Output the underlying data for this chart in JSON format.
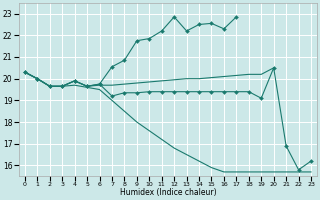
{
  "xlabel": "Humidex (Indice chaleur)",
  "bg_color": "#cce8e8",
  "grid_color": "#ffffff",
  "line_color": "#1a7a6e",
  "xlim": [
    -0.5,
    23.5
  ],
  "ylim": [
    15.5,
    23.5
  ],
  "yticks": [
    16,
    17,
    18,
    19,
    20,
    21,
    22,
    23
  ],
  "xticks": [
    0,
    1,
    2,
    3,
    4,
    5,
    6,
    7,
    8,
    9,
    10,
    11,
    12,
    13,
    14,
    15,
    16,
    17,
    18,
    19,
    20,
    21,
    22,
    23
  ],
  "series": [
    {
      "x": [
        0,
        1,
        2,
        3,
        4,
        5,
        6,
        7,
        8,
        9,
        10,
        11,
        12,
        13,
        14,
        15,
        16,
        17,
        18,
        19,
        20,
        21,
        22,
        23
      ],
      "y": [
        20.3,
        20.0,
        19.65,
        19.65,
        19.9,
        19.65,
        19.75,
        20.55,
        20.85,
        21.75,
        21.85,
        22.2,
        22.85,
        22.2,
        22.5,
        22.55,
        22.3,
        22.85,
        null,
        null,
        null,
        null,
        null,
        null
      ],
      "marker": true,
      "partial": true
    },
    {
      "x": [
        0,
        1,
        2,
        3,
        4,
        5,
        6,
        7,
        8,
        9,
        10,
        11,
        12,
        13,
        14,
        15,
        16,
        17,
        18,
        19,
        20
      ],
      "y": [
        20.3,
        20.0,
        19.65,
        19.65,
        19.9,
        19.65,
        19.7,
        19.7,
        19.75,
        19.8,
        19.85,
        19.9,
        19.95,
        20.0,
        20.0,
        20.05,
        20.1,
        20.15,
        20.2,
        20.2,
        20.5
      ],
      "marker": false,
      "partial": false
    },
    {
      "x": [
        0,
        1,
        2,
        3,
        4,
        5,
        6,
        7,
        8,
        9,
        10,
        11,
        12,
        13,
        14,
        15,
        16,
        17,
        18,
        19,
        20,
        21,
        22,
        23
      ],
      "y": [
        20.3,
        20.0,
        19.65,
        19.65,
        19.9,
        19.65,
        19.75,
        19.2,
        19.35,
        19.35,
        19.4,
        19.4,
        19.4,
        19.4,
        19.4,
        19.4,
        19.4,
        19.4,
        19.4,
        19.1,
        20.5,
        16.9,
        15.8,
        16.2
      ],
      "marker": true,
      "partial": false
    },
    {
      "x": [
        0,
        1,
        2,
        3,
        4,
        5,
        6,
        7,
        8,
        9,
        10,
        11,
        12,
        13,
        14,
        15,
        16,
        17,
        18,
        19,
        20,
        21,
        22,
        23
      ],
      "y": [
        20.3,
        20.0,
        19.65,
        19.65,
        19.7,
        19.6,
        19.5,
        19.0,
        18.5,
        18.0,
        17.6,
        17.2,
        16.8,
        16.5,
        16.2,
        15.9,
        15.7,
        15.7,
        15.7,
        15.7,
        15.7,
        15.7,
        15.7,
        15.7
      ],
      "marker": false,
      "partial": false
    }
  ]
}
